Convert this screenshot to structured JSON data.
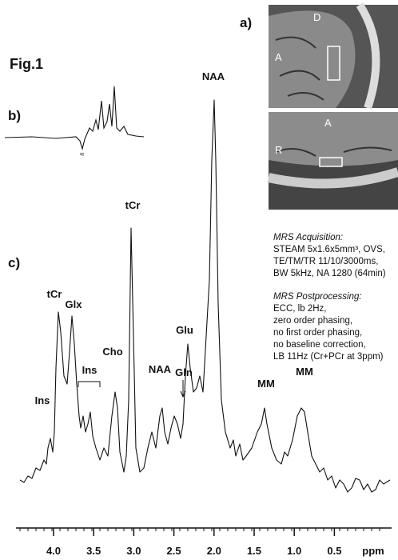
{
  "figure": {
    "label": "Fig.1",
    "panels": {
      "a": "a)",
      "b": "b)",
      "c": "c)"
    }
  },
  "mri": {
    "top": [
      "D",
      "A"
    ],
    "bottom": [
      "A",
      "R"
    ]
  },
  "peaks": [
    "NAA",
    "tCr",
    "tCr",
    "Glx",
    "Ins",
    "Cho",
    "NAA",
    "Gln",
    "Glu",
    "MM",
    "MM",
    "Ins"
  ],
  "x_axis": {
    "ticks": [
      "4.0",
      "3.5",
      "3.0",
      "2.5",
      "2.0",
      "1.5",
      "1.0",
      "0.5"
    ],
    "unit": "ppm"
  },
  "notes": {
    "acquisition_title": "MRS Acquisition:",
    "acquisition_lines": [
      "STEAM 5x1.6x5mm³, OVS,",
      "TE/TM/TR 11/10/3000ms,",
      "BW 5kHz, NA 1280 (64min)"
    ],
    "postprocessing_title": "MRS Postprocessing:",
    "postprocessing_lines": [
      "ECC, lb 2Hz,",
      "zero order phasing,",
      "no first order phasing,",
      "no baseline correction,",
      "LB 11Hz (Cr+PCr at 3ppm)"
    ]
  }
}
